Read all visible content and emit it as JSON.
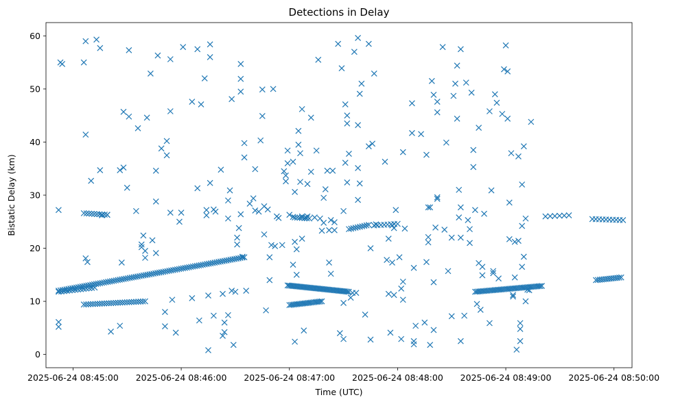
{
  "chart_data": {
    "type": "scatter",
    "title": "Detections in Delay",
    "xlabel": "Time (UTC)",
    "ylabel": "Bistatic Delay (km)",
    "marker": "x",
    "color": "#1f77b4",
    "xlim_seconds": [
      -15,
      310
    ],
    "ylim": [
      -2.5,
      62.5
    ],
    "x_ticks": [
      {
        "t": 0,
        "label": "2025-06-24 08:45:00"
      },
      {
        "t": 60,
        "label": "2025-06-24 08:46:00"
      },
      {
        "t": 120,
        "label": "2025-06-24 08:47:00"
      },
      {
        "t": 180,
        "label": "2025-06-24 08:48:00"
      },
      {
        "t": 240,
        "label": "2025-06-24 08:49:00"
      },
      {
        "t": 300,
        "label": "2025-06-24 08:50:00"
      }
    ],
    "y_ticks": [
      0,
      10,
      20,
      30,
      40,
      50,
      60
    ],
    "x_unit": "seconds after 2025-06-24 08:45:00 UTC",
    "tracks": [
      {
        "name": "track-1",
        "t_start": -8,
        "t_end": 95,
        "y_start": 12.0,
        "y_end": 18.3,
        "count": 95
      },
      {
        "name": "track-2",
        "t_start": -8,
        "t_end": 12,
        "y_start": 11.8,
        "y_end": 12.6,
        "count": 14
      },
      {
        "name": "track-3",
        "t_start": 6,
        "t_end": 40,
        "y_start": 9.4,
        "y_end": 10.0,
        "count": 28
      },
      {
        "name": "track-4",
        "t_start": 6,
        "t_end": 19,
        "y_start": 26.6,
        "y_end": 26.3,
        "count": 10
      },
      {
        "name": "track-5",
        "t_start": 119,
        "t_end": 153,
        "y_start": 13.0,
        "y_end": 11.8,
        "count": 45
      },
      {
        "name": "track-6",
        "t_start": 120,
        "t_end": 138,
        "y_start": 9.3,
        "y_end": 10.0,
        "count": 22
      },
      {
        "name": "track-7",
        "t_start": 123,
        "t_end": 131,
        "y_start": 25.8,
        "y_end": 25.6,
        "count": 7
      },
      {
        "name": "track-8",
        "t_start": 153,
        "t_end": 164,
        "y_start": 23.6,
        "y_end": 24.4,
        "count": 10
      },
      {
        "name": "track-9",
        "t_start": 167,
        "t_end": 180,
        "y_start": 24.3,
        "y_end": 24.6,
        "count": 8
      },
      {
        "name": "track-10",
        "t_start": 223,
        "t_end": 260,
        "y_start": 11.8,
        "y_end": 12.9,
        "count": 45
      },
      {
        "name": "track-11",
        "t_start": 290,
        "t_end": 304,
        "y_start": 14.0,
        "y_end": 14.5,
        "count": 14
      },
      {
        "name": "track-12",
        "t_start": 288,
        "t_end": 305,
        "y_start": 25.5,
        "y_end": 25.3,
        "count": 10
      },
      {
        "name": "track-13",
        "t_start": 262,
        "t_end": 275,
        "y_start": 26.0,
        "y_end": 26.2,
        "count": 6
      }
    ],
    "scattered_points": [
      [
        -8,
        27.2
      ],
      [
        -7,
        55
      ],
      [
        -6,
        54.7
      ],
      [
        -8,
        6.1
      ],
      [
        -8,
        5.2
      ],
      [
        6,
        55
      ],
      [
        7,
        59
      ],
      [
        7,
        41.4
      ],
      [
        8,
        17.4
      ],
      [
        7,
        18.1
      ],
      [
        10,
        32.7
      ],
      [
        13,
        59.3
      ],
      [
        15,
        57.7
      ],
      [
        15,
        34.7
      ],
      [
        16,
        26.2
      ],
      [
        19,
        26.3
      ],
      [
        21,
        4.3
      ],
      [
        26,
        34.7
      ],
      [
        28,
        35.2
      ],
      [
        28,
        45.7
      ],
      [
        30,
        31.4
      ],
      [
        31,
        57.3
      ],
      [
        31,
        44.8
      ],
      [
        26,
        5.4
      ],
      [
        27,
        17.3
      ],
      [
        35,
        27
      ],
      [
        36,
        42.6
      ],
      [
        38,
        20.7
      ],
      [
        38,
        20.2
      ],
      [
        39,
        22.4
      ],
      [
        40,
        19.5
      ],
      [
        40,
        18.2
      ],
      [
        41,
        44.6
      ],
      [
        43,
        52.9
      ],
      [
        44,
        21.5
      ],
      [
        46,
        34.6
      ],
      [
        46,
        28.8
      ],
      [
        46,
        19.1
      ],
      [
        47,
        56.3
      ],
      [
        49,
        38.8
      ],
      [
        51,
        5.3
      ],
      [
        51,
        8.0
      ],
      [
        52,
        40.2
      ],
      [
        52,
        37.5
      ],
      [
        54,
        55.6
      ],
      [
        54,
        45.8
      ],
      [
        54,
        26.7
      ],
      [
        55,
        10.3
      ],
      [
        57,
        4.1
      ],
      [
        59,
        25.0
      ],
      [
        60,
        26.7
      ],
      [
        61,
        57.9
      ],
      [
        66,
        10.6
      ],
      [
        66,
        47.6
      ],
      [
        69,
        31.3
      ],
      [
        69,
        57.5
      ],
      [
        71,
        47.1
      ],
      [
        70,
        6.4
      ],
      [
        73,
        52.0
      ],
      [
        74,
        27.2
      ],
      [
        74,
        26.2
      ],
      [
        76,
        58.4
      ],
      [
        76,
        56.0
      ],
      [
        76,
        32.3
      ],
      [
        78,
        27.3
      ],
      [
        78,
        7.3
      ],
      [
        75,
        0.8
      ],
      [
        75,
        11.1
      ],
      [
        79,
        26.9
      ],
      [
        82,
        34.8
      ],
      [
        83,
        11.4
      ],
      [
        83,
        3.5
      ],
      [
        84,
        4.2
      ],
      [
        84,
        6.0
      ],
      [
        86,
        7.4
      ],
      [
        86,
        25.6
      ],
      [
        86,
        29.0
      ],
      [
        87,
        30.9
      ],
      [
        88,
        48.1
      ],
      [
        88,
        12.0
      ],
      [
        89,
        1.8
      ],
      [
        90,
        11.8
      ],
      [
        91,
        20.7
      ],
      [
        91,
        22.0
      ],
      [
        92,
        23.8
      ],
      [
        93,
        54.7
      ],
      [
        93,
        51.9
      ],
      [
        93,
        49.5
      ],
      [
        93,
        26.4
      ],
      [
        94,
        18.4
      ],
      [
        95,
        39.8
      ],
      [
        95,
        37.1
      ],
      [
        96,
        12.0
      ],
      [
        98,
        28.4
      ],
      [
        100,
        29.4
      ],
      [
        101,
        34.9
      ],
      [
        101,
        27.1
      ],
      [
        103,
        26.9
      ],
      [
        104,
        40.3
      ],
      [
        105,
        49.9
      ],
      [
        105,
        44.9
      ],
      [
        106,
        22.6
      ],
      [
        106,
        27.9
      ],
      [
        107,
        8.3
      ],
      [
        108,
        27.3
      ],
      [
        109,
        18.3
      ],
      [
        109,
        14.0
      ],
      [
        110,
        20.6
      ],
      [
        111,
        50.0
      ],
      [
        112,
        20.4
      ],
      [
        113,
        26.0
      ],
      [
        114,
        25.7
      ],
      [
        116,
        20.6
      ],
      [
        117,
        34.5
      ],
      [
        118,
        32.6
      ],
      [
        118,
        33.7
      ],
      [
        119,
        36.0
      ],
      [
        119,
        38.4
      ],
      [
        120,
        26.3
      ],
      [
        122,
        25.9
      ],
      [
        122,
        16.9
      ],
      [
        122,
        36.3
      ],
      [
        123,
        21.2
      ],
      [
        123,
        30.6
      ],
      [
        123,
        2.4
      ],
      [
        124,
        15.0
      ],
      [
        124,
        19.8
      ],
      [
        125,
        42.1
      ],
      [
        125,
        39.5
      ],
      [
        126,
        37.9
      ],
      [
        126,
        32.5
      ],
      [
        127,
        46.2
      ],
      [
        127,
        26.0
      ],
      [
        127,
        21.8
      ],
      [
        128,
        4.5
      ],
      [
        129,
        25.8
      ],
      [
        130,
        32.1
      ],
      [
        130,
        26.0
      ],
      [
        132,
        34.4
      ],
      [
        132,
        44.6
      ],
      [
        134,
        25.8
      ],
      [
        135,
        38.4
      ],
      [
        136,
        55.5
      ],
      [
        137,
        25.6
      ],
      [
        138,
        23.3
      ],
      [
        139,
        24.8
      ],
      [
        139,
        29.5
      ],
      [
        140,
        31.1
      ],
      [
        141,
        34.6
      ],
      [
        142,
        23.4
      ],
      [
        142,
        17.3
      ],
      [
        143,
        25.3
      ],
      [
        143,
        15.2
      ],
      [
        144,
        34.6
      ],
      [
        145,
        24.9
      ],
      [
        145,
        23.4
      ],
      [
        147,
        58.5
      ],
      [
        148,
        4.0
      ],
      [
        149,
        53.9
      ],
      [
        150,
        27.0
      ],
      [
        150,
        2.9
      ],
      [
        150,
        9.7
      ],
      [
        151,
        36.1
      ],
      [
        151,
        47.1
      ],
      [
        152,
        43.5
      ],
      [
        152,
        45.0
      ],
      [
        152,
        32.4
      ],
      [
        153,
        37.8
      ],
      [
        154,
        10.7
      ],
      [
        155,
        11.6
      ],
      [
        156,
        57.0
      ],
      [
        157,
        11.6
      ],
      [
        158,
        59.6
      ],
      [
        158,
        43.2
      ],
      [
        158,
        35.1
      ],
      [
        158,
        29.1
      ],
      [
        159,
        49.1
      ],
      [
        159,
        32.2
      ],
      [
        160,
        51.0
      ],
      [
        162,
        7.5
      ],
      [
        164,
        58.5
      ],
      [
        164,
        39.2
      ],
      [
        165,
        20.0
      ],
      [
        165,
        2.8
      ],
      [
        166,
        39.7
      ],
      [
        167,
        52.9
      ],
      [
        168,
        24.5
      ],
      [
        173,
        36.3
      ],
      [
        174,
        17.8
      ],
      [
        175,
        21.8
      ],
      [
        175,
        11.4
      ],
      [
        176,
        4.1
      ],
      [
        177,
        24.3
      ],
      [
        177,
        17.3
      ],
      [
        178,
        11.2
      ],
      [
        178,
        23.8
      ],
      [
        179,
        27.2
      ],
      [
        181,
        18.3
      ],
      [
        182,
        2.9
      ],
      [
        182,
        12.4
      ],
      [
        183,
        10.3
      ],
      [
        183,
        13.7
      ],
      [
        183,
        38.1
      ],
      [
        184,
        23.7
      ],
      [
        188,
        47.3
      ],
      [
        188,
        41.7
      ],
      [
        189,
        2.5
      ],
      [
        189,
        1.9
      ],
      [
        189,
        16.3
      ],
      [
        190,
        5.4
      ],
      [
        193,
        41.5
      ],
      [
        195,
        6.0
      ],
      [
        196,
        37.6
      ],
      [
        196,
        17.4
      ],
      [
        197,
        21.1
      ],
      [
        197,
        22.1
      ],
      [
        197,
        27.7
      ],
      [
        198,
        27.7
      ],
      [
        198,
        1.8
      ],
      [
        199,
        51.5
      ],
      [
        200,
        48.9
      ],
      [
        200,
        4.6
      ],
      [
        202,
        45.6
      ],
      [
        202,
        47.6
      ],
      [
        202,
        29.6
      ],
      [
        202,
        29.3
      ],
      [
        201,
        23.9
      ],
      [
        205,
        57.9
      ],
      [
        206,
        23.5
      ],
      [
        207,
        39.9
      ],
      [
        208,
        15.7
      ],
      [
        210,
        22.0
      ],
      [
        210,
        7.2
      ],
      [
        211,
        48.7
      ],
      [
        212,
        51.0
      ],
      [
        213,
        54.4
      ],
      [
        213,
        44.4
      ],
      [
        214,
        31.0
      ],
      [
        214,
        25.8
      ],
      [
        215,
        57.5
      ],
      [
        215,
        27.7
      ],
      [
        215,
        2.5
      ],
      [
        215,
        22.0
      ],
      [
        217,
        7.3
      ],
      [
        218,
        51.2
      ],
      [
        219,
        25.3
      ],
      [
        220,
        21.0
      ],
      [
        220,
        23.6
      ],
      [
        221,
        49.3
      ],
      [
        222,
        38.5
      ],
      [
        222,
        35.3
      ],
      [
        223,
        27.2
      ],
      [
        224,
        9.5
      ],
      [
        225,
        42.7
      ],
      [
        225,
        17.2
      ],
      [
        226,
        8.4
      ],
      [
        227,
        16.5
      ],
      [
        227,
        14.9
      ],
      [
        228,
        26.5
      ],
      [
        232,
        30.9
      ],
      [
        233,
        15.7
      ],
      [
        233,
        15.3
      ],
      [
        234,
        49.0
      ],
      [
        235,
        47.4
      ],
      [
        236,
        14.3
      ],
      [
        238,
        45.3
      ],
      [
        239,
        53.7
      ],
      [
        240,
        58.2
      ],
      [
        241,
        53.3
      ],
      [
        241,
        44.4
      ],
      [
        242,
        21.7
      ],
      [
        242,
        28.6
      ],
      [
        243,
        37.9
      ],
      [
        244,
        11.2
      ],
      [
        244,
        10.9
      ],
      [
        245,
        21.2
      ],
      [
        245,
        14.5
      ],
      [
        246,
        0.9
      ],
      [
        247,
        37.3
      ],
      [
        247,
        21.4
      ],
      [
        248,
        5.9
      ],
      [
        248,
        2.5
      ],
      [
        248,
        4.8
      ],
      [
        249,
        32.0
      ],
      [
        249,
        24.2
      ],
      [
        249,
        16.5
      ],
      [
        250,
        39.2
      ],
      [
        250,
        18.4
      ],
      [
        251,
        25.6
      ],
      [
        251,
        10.0
      ],
      [
        252,
        12.2
      ],
      [
        253,
        12.1
      ],
      [
        254,
        43.8
      ],
      [
        231,
        45.8
      ],
      [
        231,
        5.9
      ],
      [
        200,
        13.6
      ]
    ]
  }
}
